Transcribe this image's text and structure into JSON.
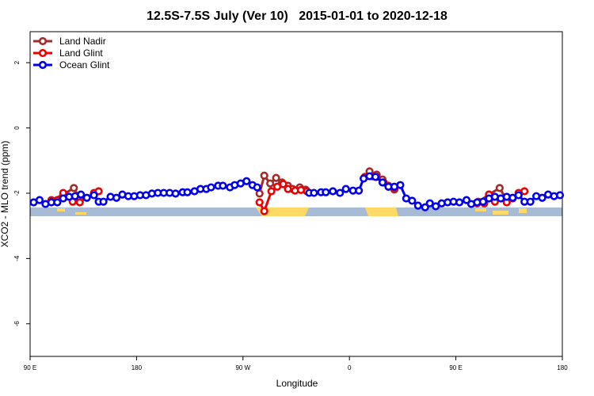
{
  "chart_data": {
    "type": "line",
    "title": "12.5S-7.5S July (Ver 10)   2015-01-01 to 2020-12-18",
    "x_label": "Longitude",
    "y_label": "XCO2 - MLO trend (ppm)",
    "xlim": [
      90,
      540
    ],
    "ylim": [
      -7,
      2.95
    ],
    "xticks": [
      {
        "value": 90,
        "label": "90 E"
      },
      180,
      {
        "value": 270,
        "label": "90 W"
      },
      {
        "value": 360,
        "label": "0"
      },
      {
        "value": 450,
        "label": "90 E"
      },
      {
        "value": 540,
        "label": "180"
      }
    ],
    "yticks": [
      -6,
      -4,
      -2,
      0,
      2
    ],
    "legend": "top-left",
    "series": [
      {
        "name": "Land Nadir",
        "color": "#a52a2a",
        "x": [
          108,
          118,
          127,
          132,
          144,
          null,
          284,
          288,
          293,
          298,
          303,
          308,
          312,
          318,
          323,
          null,
          377,
          383,
          388,
          393,
          398,
          null,
          469,
          478,
          487,
          493,
          503
        ],
        "values": [
          -2.21,
          -2.04,
          -1.84,
          -2.16,
          -2.04,
          null,
          -2.01,
          -1.46,
          -1.7,
          -1.53,
          -1.67,
          -1.77,
          -1.87,
          -1.82,
          -1.89,
          null,
          -1.33,
          -1.43,
          -1.58,
          -1.77,
          -1.89,
          null,
          -2.26,
          -2.04,
          -1.84,
          -2.21,
          -2.06
        ]
      },
      {
        "name": "Land Glint",
        "color": "#ee0000",
        "x": [
          108,
          113,
          118,
          126,
          132,
          144,
          148,
          null,
          284,
          288,
          294,
          299,
          304,
          308,
          314,
          319,
          324,
          null,
          373,
          379,
          383,
          389,
          393,
          398,
          null,
          468,
          474,
          478,
          483,
          488,
          493,
          498,
          503,
          508
        ],
        "values": [
          -2.23,
          -2.21,
          -1.99,
          -2.26,
          -2.28,
          -1.99,
          -1.94,
          null,
          -2.28,
          -2.55,
          -1.94,
          -1.8,
          -1.72,
          -1.87,
          -1.92,
          -1.9,
          -1.94,
          null,
          -1.5,
          -1.48,
          -1.5,
          -1.67,
          -1.8,
          -1.84,
          null,
          -2.31,
          -2.31,
          -2.04,
          -2.26,
          -2.16,
          -2.28,
          -2.16,
          -1.99,
          -1.94
        ]
      },
      {
        "name": "Ocean Glint",
        "color": "#0000ee",
        "x": [
          93,
          98,
          103,
          108,
          113,
          118,
          123,
          128,
          133,
          138,
          144,
          148,
          152,
          158,
          163,
          168,
          173,
          178,
          183,
          188,
          193,
          198,
          203,
          208,
          213,
          219,
          223,
          229,
          234,
          239,
          243,
          249,
          253,
          259,
          263,
          268,
          273,
          278,
          282,
          null,
          326,
          330,
          336,
          340,
          346,
          352,
          357,
          363,
          368,
          372,
          377,
          382,
          388,
          393,
          398,
          403,
          408,
          413,
          418,
          424,
          428,
          433,
          438,
          443,
          448,
          453,
          459,
          463,
          468,
          473,
          478,
          483,
          488,
          493,
          498,
          503,
          508,
          513,
          518,
          523,
          528,
          533,
          538
        ],
        "values": [
          -2.28,
          -2.21,
          -2.33,
          -2.28,
          -2.28,
          -2.16,
          -2.11,
          -2.09,
          -2.04,
          -2.14,
          -2.06,
          -2.26,
          -2.26,
          -2.11,
          -2.14,
          -2.04,
          -2.09,
          -2.09,
          -2.06,
          -2.06,
          -2.01,
          -1.99,
          -1.99,
          -1.99,
          -2.01,
          -1.97,
          -1.97,
          -1.94,
          -1.87,
          -1.87,
          -1.82,
          -1.77,
          -1.77,
          -1.82,
          -1.75,
          -1.7,
          -1.63,
          -1.75,
          -1.82,
          null,
          -1.99,
          -1.99,
          -1.97,
          -1.97,
          -1.94,
          -1.99,
          -1.87,
          -1.92,
          -1.92,
          -1.55,
          -1.48,
          -1.5,
          -1.67,
          -1.8,
          -1.8,
          -1.75,
          -2.16,
          -2.23,
          -2.38,
          -2.43,
          -2.31,
          -2.4,
          -2.31,
          -2.28,
          -2.26,
          -2.28,
          -2.21,
          -2.33,
          -2.28,
          -2.26,
          -2.16,
          -2.11,
          -2.16,
          -2.11,
          -2.14,
          -2.06,
          -2.26,
          -2.26,
          -2.09,
          -2.14,
          -2.04,
          -2.09,
          -2.06
        ]
      }
    ]
  }
}
